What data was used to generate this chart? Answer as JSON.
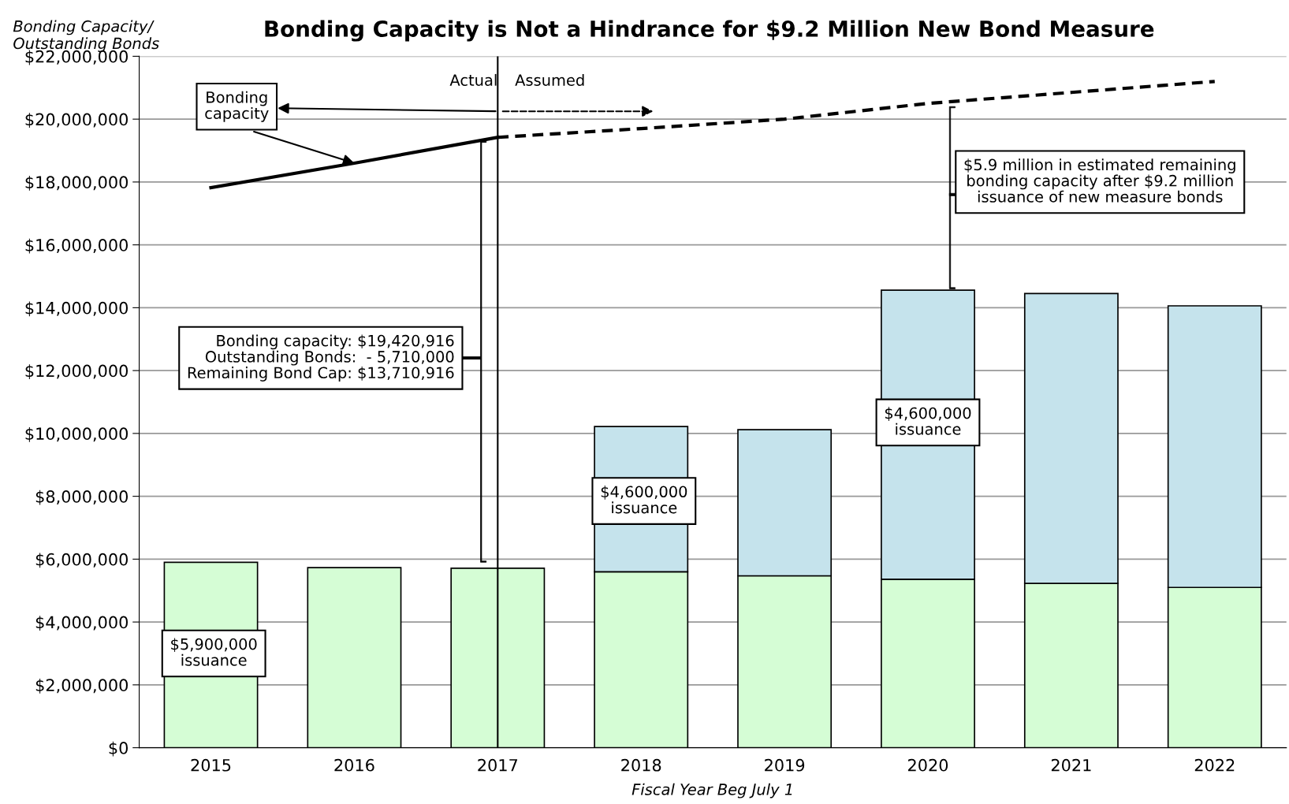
{
  "chart_data": {
    "type": "bar",
    "stacked": true,
    "title": "Bonding Capacity is Not a Hindrance for $9.2 Million New Bond Measure",
    "xlabel": "Fiscal Year Beg July 1",
    "ylabel": "Bonding Capacity/\nOutstanding Bonds",
    "categories": [
      "2015",
      "2016",
      "2017",
      "2018",
      "2019",
      "2020",
      "2021",
      "2022"
    ],
    "series": [
      {
        "color": "#d5fdd5",
        "values": [
          5900000,
          5730000,
          5710000,
          5600000,
          5470000,
          5360000,
          5230000,
          5100000
        ]
      },
      {
        "color": "#c5e3ec",
        "values": [
          null,
          null,
          null,
          4620000,
          4650000,
          9200000,
          9220000,
          8960000
        ]
      },
      {
        "type": "line",
        "color": "#000000",
        "line_style": "solid",
        "values": [
          17820000,
          18600000,
          19420916,
          null,
          null,
          null,
          null,
          null
        ]
      },
      {
        "type": "line",
        "color": "#000000",
        "line_style": "dashed",
        "values": [
          null,
          null,
          19420916,
          19700000,
          20000000,
          20500000,
          20850000,
          21200000
        ]
      }
    ],
    "ylim": [
      0,
      22000000
    ],
    "yticks": [
      {
        "value": 0,
        "label": "$0"
      },
      {
        "value": 2000000,
        "label": "$2,000,000"
      },
      {
        "value": 4000000,
        "label": "$4,000,000"
      },
      {
        "value": 6000000,
        "label": "$6,000,000"
      },
      {
        "value": 8000000,
        "label": "$8,000,000"
      },
      {
        "value": 10000000,
        "label": "$10,000,000"
      },
      {
        "value": 12000000,
        "label": "$12,000,000"
      },
      {
        "value": 14000000,
        "label": "$14,000,000"
      },
      {
        "value": 16000000,
        "label": "$16,000,000"
      },
      {
        "value": 18000000,
        "label": "$18,000,000"
      },
      {
        "value": 20000000,
        "label": "$20,000,000"
      },
      {
        "value": 22000000,
        "label": "$22,000,000"
      }
    ],
    "grid": "y",
    "marker": "none",
    "ref_lines": [
      {
        "axis": "x",
        "value": "2017",
        "color": "#000000"
      }
    ],
    "annotations": [
      "Actual",
      "Assumed",
      {
        "text": "Bonding\ncapacity",
        "x": "2016",
        "y": 18600000
      },
      "Bonding capacity: $19,420,916\nOutstanding Bonds:  - 5,710,000\nRemaining Bond Cap: $13,710,916",
      "$5.9 million in estimated remaining\nbonding capacity after $9.2 million\nissuance of new measure bonds",
      "$5,900,000\nissuance",
      "$4,600,000\nissuance",
      "$4,600,000\nissuance"
    ]
  }
}
